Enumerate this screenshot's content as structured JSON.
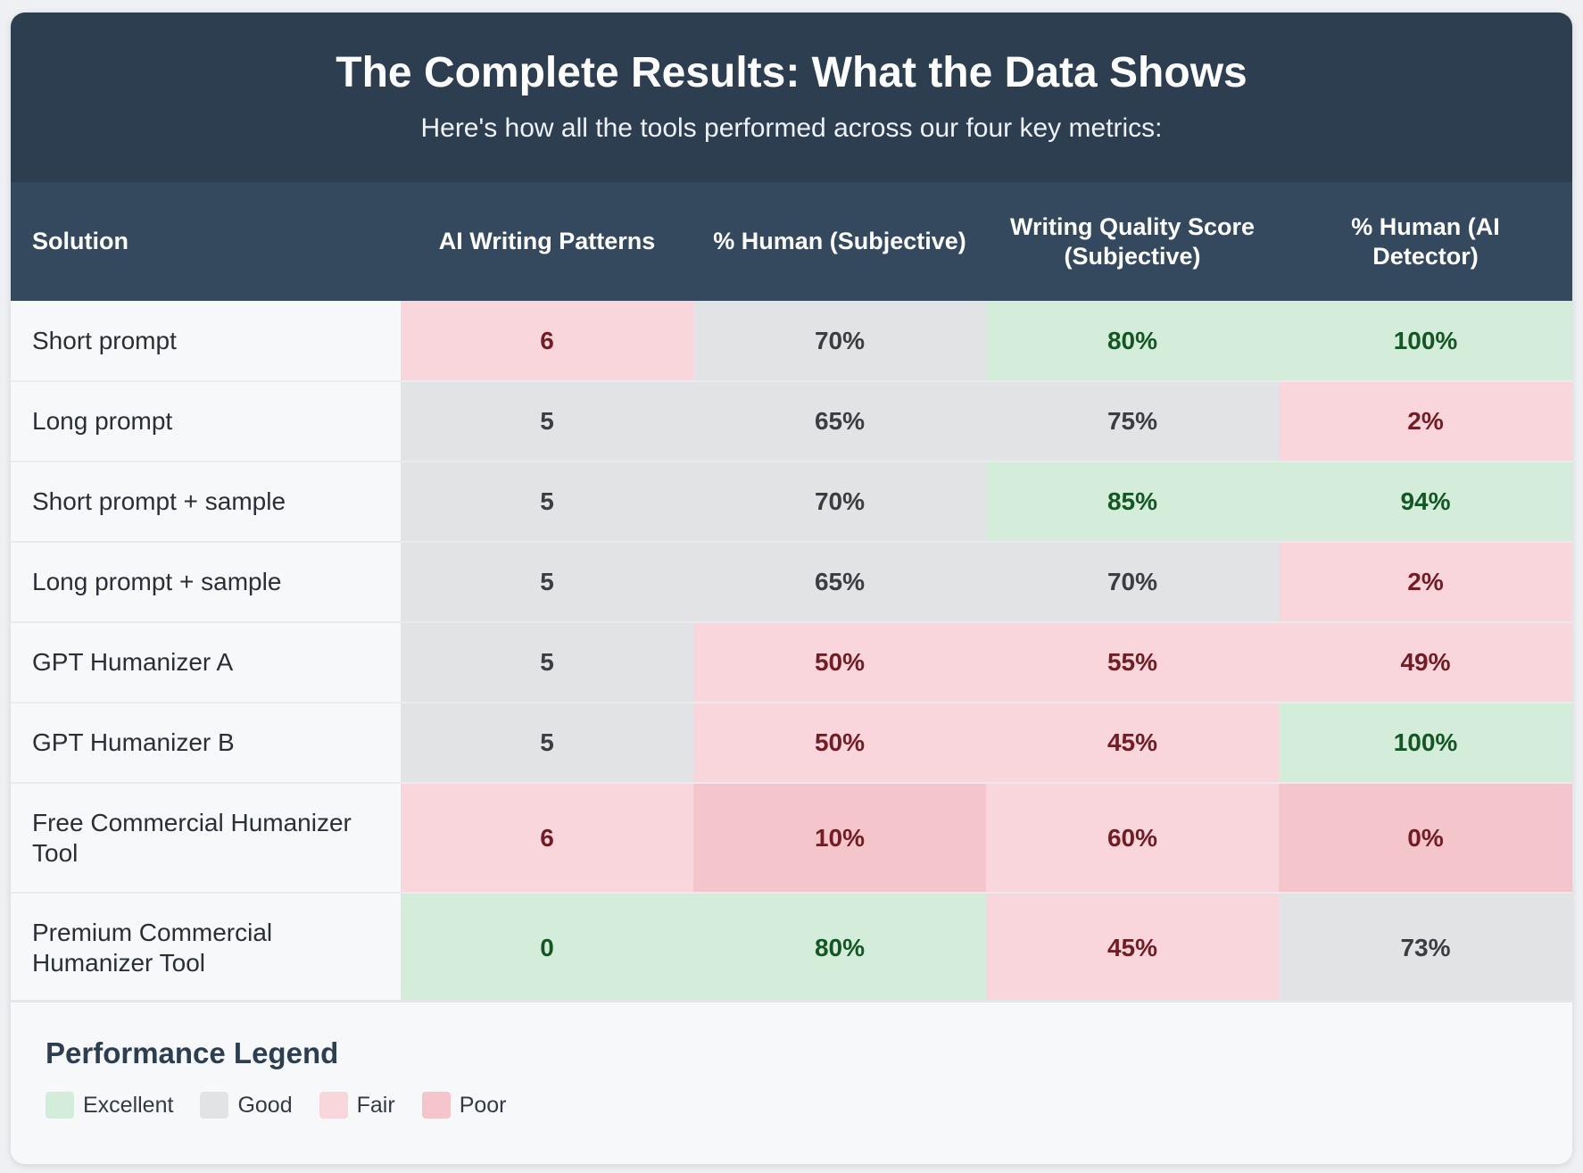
{
  "header": {
    "title": "The Complete Results: What the Data Shows",
    "subtitle": "Here's how all the tools performed across our four key metrics:"
  },
  "chart_data": {
    "type": "table",
    "columns": [
      "Solution",
      "AI Writing Patterns",
      "% Human (Subjective)",
      "Writing Quality Score (Subjective)",
      "% Human (AI Detector)"
    ],
    "rows": [
      {
        "solution": "Short prompt",
        "cells": [
          {
            "value": "6",
            "rating": "fair"
          },
          {
            "value": "70%",
            "rating": "good"
          },
          {
            "value": "80%",
            "rating": "excellent"
          },
          {
            "value": "100%",
            "rating": "excellent"
          }
        ]
      },
      {
        "solution": "Long prompt",
        "cells": [
          {
            "value": "5",
            "rating": "good"
          },
          {
            "value": "65%",
            "rating": "good"
          },
          {
            "value": "75%",
            "rating": "good"
          },
          {
            "value": "2%",
            "rating": "fair"
          }
        ]
      },
      {
        "solution": "Short prompt + sample",
        "cells": [
          {
            "value": "5",
            "rating": "good"
          },
          {
            "value": "70%",
            "rating": "good"
          },
          {
            "value": "85%",
            "rating": "excellent"
          },
          {
            "value": "94%",
            "rating": "excellent"
          }
        ]
      },
      {
        "solution": "Long prompt + sample",
        "cells": [
          {
            "value": "5",
            "rating": "good"
          },
          {
            "value": "65%",
            "rating": "good"
          },
          {
            "value": "70%",
            "rating": "good"
          },
          {
            "value": "2%",
            "rating": "fair"
          }
        ]
      },
      {
        "solution": "GPT Humanizer A",
        "cells": [
          {
            "value": "5",
            "rating": "good"
          },
          {
            "value": "50%",
            "rating": "fair"
          },
          {
            "value": "55%",
            "rating": "fair"
          },
          {
            "value": "49%",
            "rating": "fair"
          }
        ]
      },
      {
        "solution": "GPT Humanizer B",
        "cells": [
          {
            "value": "5",
            "rating": "good"
          },
          {
            "value": "50%",
            "rating": "fair"
          },
          {
            "value": "45%",
            "rating": "fair"
          },
          {
            "value": "100%",
            "rating": "excellent"
          }
        ]
      },
      {
        "solution": "Free Commercial Humanizer Tool",
        "cells": [
          {
            "value": "6",
            "rating": "fair"
          },
          {
            "value": "10%",
            "rating": "poor"
          },
          {
            "value": "60%",
            "rating": "fair"
          },
          {
            "value": "0%",
            "rating": "poor"
          }
        ]
      },
      {
        "solution": "Premium Commercial Humanizer Tool",
        "cells": [
          {
            "value": "0",
            "rating": "excellent"
          },
          {
            "value": "80%",
            "rating": "excellent"
          },
          {
            "value": "45%",
            "rating": "fair"
          },
          {
            "value": "73%",
            "rating": "good"
          }
        ]
      }
    ]
  },
  "legend": {
    "title": "Performance Legend",
    "items": [
      {
        "key": "excellent",
        "label": "Excellent",
        "color": "#d4edda"
      },
      {
        "key": "good",
        "label": "Good",
        "color": "#e2e3e5"
      },
      {
        "key": "fair",
        "label": "Fair",
        "color": "#f9d6db"
      },
      {
        "key": "poor",
        "label": "Poor",
        "color": "#f4c6cb"
      }
    ]
  }
}
